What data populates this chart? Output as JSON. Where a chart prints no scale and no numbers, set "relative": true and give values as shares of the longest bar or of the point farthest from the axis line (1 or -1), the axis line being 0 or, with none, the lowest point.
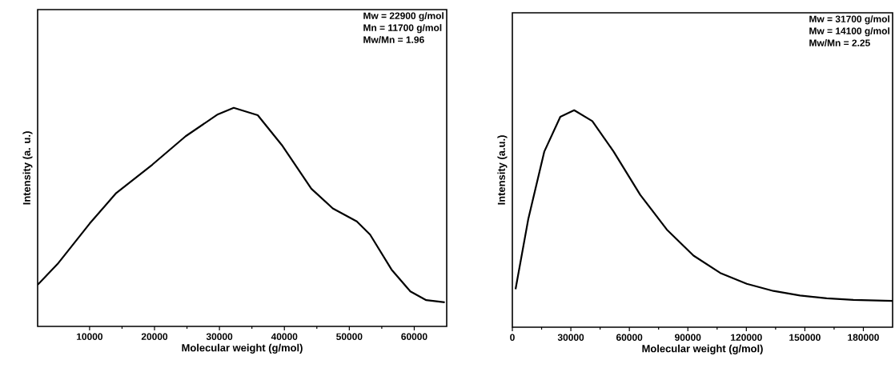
{
  "chart_data": [
    {
      "type": "line",
      "relative": true,
      "xlabel": "Molecular weight (g/mol)",
      "ylabel": "Intensity (a. u.)",
      "xlim": [
        2000,
        65000
      ],
      "xticks": [
        10000,
        20000,
        30000,
        40000,
        50000,
        60000
      ],
      "annotations": [
        "Mw = 22900 g/mol",
        "Mn = 11700 g/mol",
        "Mw/Mn = 1.96"
      ],
      "marker": "none",
      "line_style": "solid",
      "series": [
        {
          "color": "#000000",
          "x": [
            2000,
            5060,
            10000,
            14100,
            19670,
            24800,
            29750,
            32200,
            35900,
            39600,
            44150,
            47450,
            51150,
            53200,
            56500,
            59400,
            61850,
            64700
          ],
          "values": [
            0.19,
            0.285,
            0.47,
            0.61,
            0.74,
            0.87,
            0.97,
            1,
            0.966,
            0.83,
            0.63,
            0.54,
            0.48,
            0.42,
            0.26,
            0.16,
            0.12,
            0.11
          ]
        }
      ]
    },
    {
      "type": "line",
      "relative": true,
      "xlabel": "Molecular weight (g/mol)",
      "ylabel": "Intensity (a.u.)",
      "xlim": [
        0,
        195000
      ],
      "xticks": [
        0,
        30000,
        60000,
        90000,
        120000,
        150000,
        180000
      ],
      "annotations": [
        "Mw = 31700 g/mol",
        "Mw = 14100 g/mol",
        "Mw/Mn = 2.25"
      ],
      "marker": "none",
      "line_style": "solid",
      "series": [
        {
          "color": "#000000",
          "x": [
            1640,
            8200,
            16400,
            24600,
            31700,
            41000,
            51900,
            65600,
            79200,
            92900,
            106600,
            120200,
            133900,
            147500,
            161200,
            174900,
            195000
          ],
          "values": [
            0.175,
            0.5,
            0.81,
            0.97,
            1,
            0.95,
            0.81,
            0.61,
            0.45,
            0.33,
            0.25,
            0.2,
            0.167,
            0.146,
            0.133,
            0.126,
            0.121
          ]
        }
      ]
    }
  ]
}
